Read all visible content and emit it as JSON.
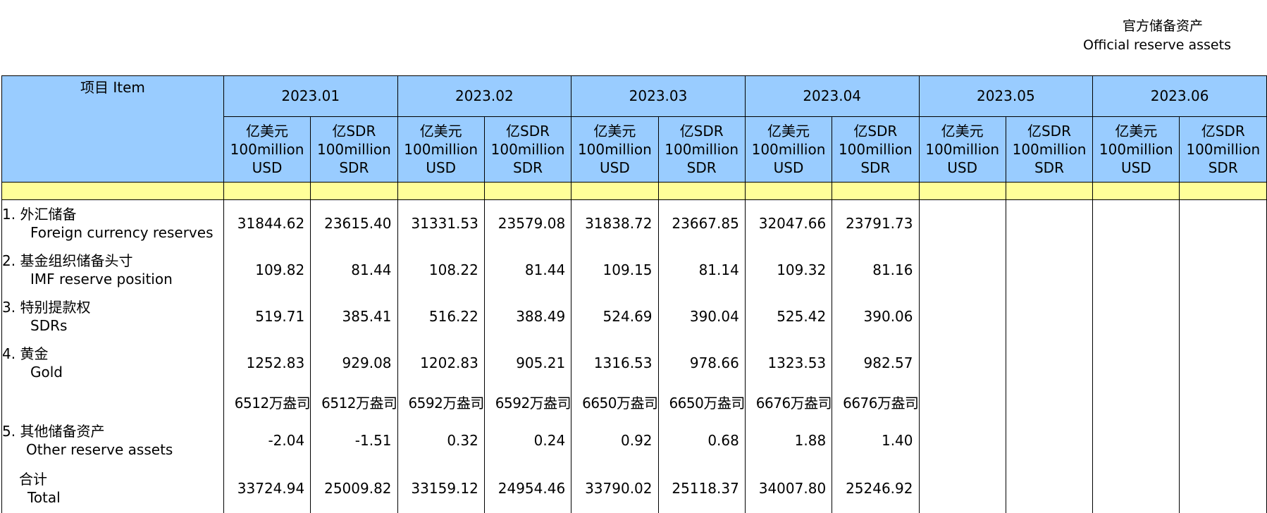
{
  "title": {
    "zh": "官方储备资产",
    "en": "Official reserve assets"
  },
  "header": {
    "item_label": "项目  Item",
    "months": [
      "2023.01",
      "2023.02",
      "2023.03",
      "2023.04",
      "2023.05",
      "2023.06"
    ],
    "unit_usd": [
      "亿美元",
      "100million",
      "USD"
    ],
    "unit_sdr": [
      "亿SDR",
      "100million",
      "SDR"
    ]
  },
  "rows": [
    {
      "zh": "1.  外汇储备",
      "en": "Foreign currency reserves",
      "values": [
        "31844.62",
        "23615.40",
        "31331.53",
        "23579.08",
        "31838.72",
        "23667.85",
        "32047.66",
        "23791.73",
        "",
        "",
        "",
        ""
      ]
    },
    {
      "zh": "2.  基金组织储备头寸",
      "en": "IMF reserve position",
      "values": [
        "109.82",
        "81.44",
        "108.22",
        "81.44",
        "109.15",
        "81.14",
        "109.32",
        "81.16",
        "",
        "",
        "",
        ""
      ]
    },
    {
      "zh": "3.  特别提款权",
      "en": "SDRs",
      "values": [
        "519.71",
        "385.41",
        "516.22",
        "388.49",
        "524.69",
        "390.04",
        "525.42",
        "390.06",
        "",
        "",
        "",
        ""
      ]
    },
    {
      "zh": "4.  黄金",
      "en": "Gold",
      "values": [
        "1252.83",
        "929.08",
        "1202.83",
        "905.21",
        "1316.53",
        "978.66",
        "1323.53",
        "982.57",
        "",
        "",
        "",
        ""
      ]
    }
  ],
  "gold_ounces": [
    "6512万盎司",
    "6512万盎司",
    "6592万盎司",
    "6592万盎司",
    "6650万盎司",
    "6650万盎司",
    "6676万盎司",
    "6676万盎司",
    "",
    "",
    "",
    ""
  ],
  "other": {
    "zh": "5.  其他储备资产",
    "en": "Other reserve assets",
    "values": [
      "-2.04",
      "-1.51",
      "0.32",
      "0.24",
      "0.92",
      "0.68",
      "1.88",
      "1.40",
      "",
      "",
      "",
      ""
    ]
  },
  "total": {
    "zh": "合计",
    "en": "Total",
    "values": [
      "33724.94",
      "25009.82",
      "33159.12",
      "24954.46",
      "33790.02",
      "25118.37",
      "34007.80",
      "25246.92",
      "",
      "",
      "",
      ""
    ]
  },
  "colors": {
    "header_bg": "#99ccff",
    "band_bg": "#ffff99"
  }
}
